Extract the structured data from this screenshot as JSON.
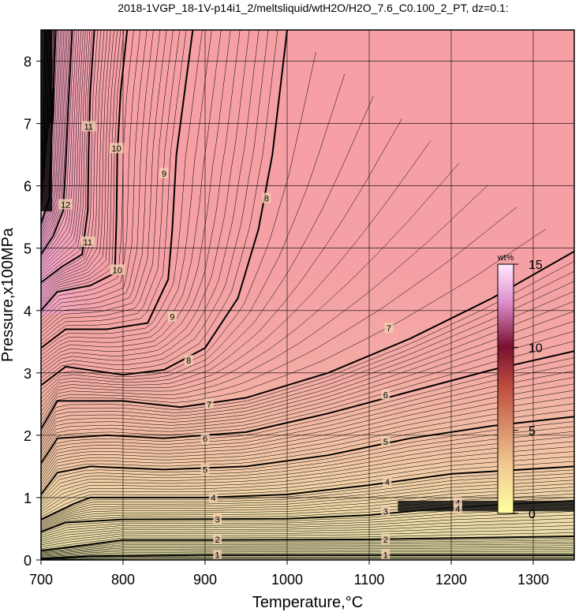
{
  "chart_data": {
    "type": "contour",
    "title": "2018-1VGP_18-1V-p14i1_2/meltsliquid/wtH2O/H2O_7.6_C0.100_2_PT, dz=0.1:",
    "xlabel": "Temperature,°C",
    "ylabel": "Pressure,x100MPa",
    "xlim": [
      700,
      1350
    ],
    "ylim": [
      0,
      8.5
    ],
    "x_ticks": [
      "700",
      "800",
      "900",
      "1000",
      "1100",
      "1200",
      "1300"
    ],
    "y_ticks": [
      "0",
      "1",
      "2",
      "3",
      "4",
      "5",
      "6",
      "7",
      "8"
    ],
    "grid": true,
    "colorbar": {
      "unit": "wt%",
      "ticks": [
        "0",
        "5",
        "10",
        "15"
      ],
      "range": [
        0,
        15
      ],
      "placement": "right-inside"
    },
    "contour_labels": [
      {
        "level": "1",
        "x": 915,
        "y": 0.08
      },
      {
        "level": "1",
        "x": 1120,
        "y": 0.08
      },
      {
        "level": "2",
        "x": 915,
        "y": 0.33
      },
      {
        "level": "2",
        "x": 1120,
        "y": 0.33
      },
      {
        "level": "3",
        "x": 915,
        "y": 0.65
      },
      {
        "level": "3",
        "x": 1120,
        "y": 0.78
      },
      {
        "level": "4",
        "x": 910,
        "y": 1.0
      },
      {
        "level": "4",
        "x": 1122,
        "y": 1.25
      },
      {
        "level": "4",
        "x": 1208,
        "y": 0.92
      },
      {
        "level": "4",
        "x": 1208,
        "y": 0.82
      },
      {
        "level": "5",
        "x": 900,
        "y": 1.45
      },
      {
        "level": "5",
        "x": 1120,
        "y": 1.9
      },
      {
        "level": "6",
        "x": 900,
        "y": 1.95
      },
      {
        "level": "6",
        "x": 1120,
        "y": 2.65
      },
      {
        "level": "7",
        "x": 905,
        "y": 2.5
      },
      {
        "level": "7",
        "x": 1124,
        "y": 3.72
      },
      {
        "level": "8",
        "x": 880,
        "y": 3.2
      },
      {
        "level": "8",
        "x": 975,
        "y": 5.8
      },
      {
        "level": "9",
        "x": 860,
        "y": 3.9
      },
      {
        "level": "9",
        "x": 850,
        "y": 6.2
      },
      {
        "level": "10",
        "x": 793,
        "y": 4.65
      },
      {
        "level": "10",
        "x": 792,
        "y": 6.6
      },
      {
        "level": "11",
        "x": 757,
        "y": 5.1
      },
      {
        "level": "11",
        "x": 758,
        "y": 6.95
      },
      {
        "level": "12",
        "x": 730,
        "y": 5.7
      }
    ],
    "heavy_contours": [
      {
        "level": 1,
        "points": [
          [
            700,
            0.02
          ],
          [
            760,
            0.06
          ],
          [
            900,
            0.08
          ],
          [
            1100,
            0.08
          ],
          [
            1350,
            0.08
          ]
        ]
      },
      {
        "level": 2,
        "points": [
          [
            700,
            0.15
          ],
          [
            760,
            0.25
          ],
          [
            800,
            0.32
          ],
          [
            900,
            0.32
          ],
          [
            1100,
            0.33
          ],
          [
            1350,
            0.38
          ]
        ]
      },
      {
        "level": 3,
        "points": [
          [
            700,
            0.45
          ],
          [
            730,
            0.6
          ],
          [
            800,
            0.65
          ],
          [
            1000,
            0.66
          ],
          [
            1100,
            0.72
          ],
          [
            1200,
            0.84
          ],
          [
            1350,
            0.95
          ]
        ]
      },
      {
        "level": 4,
        "points": [
          [
            700,
            0.65
          ],
          [
            740,
            0.9
          ],
          [
            760,
            1.0
          ],
          [
            900,
            1.0
          ],
          [
            1000,
            1.05
          ],
          [
            1100,
            1.2
          ],
          [
            1200,
            1.38
          ],
          [
            1350,
            1.5
          ]
        ]
      },
      {
        "level": 5,
        "points": [
          [
            700,
            1.05
          ],
          [
            720,
            1.4
          ],
          [
            760,
            1.5
          ],
          [
            850,
            1.45
          ],
          [
            950,
            1.5
          ],
          [
            1050,
            1.68
          ],
          [
            1150,
            1.95
          ],
          [
            1250,
            2.15
          ],
          [
            1350,
            2.3
          ]
        ]
      },
      {
        "level": 6,
        "points": [
          [
            700,
            1.55
          ],
          [
            720,
            1.95
          ],
          [
            780,
            2.0
          ],
          [
            850,
            1.95
          ],
          [
            950,
            2.05
          ],
          [
            1050,
            2.35
          ],
          [
            1150,
            2.7
          ],
          [
            1250,
            3.05
          ],
          [
            1350,
            3.35
          ]
        ]
      },
      {
        "level": 7,
        "points": [
          [
            700,
            2.1
          ],
          [
            720,
            2.55
          ],
          [
            800,
            2.55
          ],
          [
            870,
            2.45
          ],
          [
            950,
            2.6
          ],
          [
            1050,
            3.0
          ],
          [
            1150,
            3.55
          ],
          [
            1250,
            4.2
          ],
          [
            1350,
            4.95
          ]
        ]
      },
      {
        "level": 8,
        "points": [
          [
            700,
            2.8
          ],
          [
            730,
            3.1
          ],
          [
            800,
            2.97
          ],
          [
            850,
            3.05
          ],
          [
            900,
            3.4
          ],
          [
            940,
            4.2
          ],
          [
            965,
            5.3
          ],
          [
            982,
            6.5
          ],
          [
            1000,
            8.5
          ]
        ]
      },
      {
        "level": 9,
        "points": [
          [
            700,
            3.4
          ],
          [
            730,
            3.7
          ],
          [
            780,
            3.7
          ],
          [
            830,
            3.8
          ],
          [
            855,
            4.5
          ],
          [
            860,
            5.3
          ],
          [
            865,
            6.5
          ],
          [
            885,
            8.5
          ]
        ]
      },
      {
        "level": 10,
        "points": [
          [
            700,
            4.0
          ],
          [
            720,
            4.3
          ],
          [
            760,
            4.4
          ],
          [
            790,
            4.6
          ],
          [
            792,
            5.5
          ],
          [
            793,
            6.5
          ],
          [
            797,
            7.5
          ],
          [
            805,
            8.5
          ]
        ]
      },
      {
        "level": 11,
        "points": [
          [
            700,
            4.45
          ],
          [
            725,
            4.7
          ],
          [
            750,
            4.9
          ],
          [
            757,
            5.6
          ],
          [
            758,
            6.5
          ],
          [
            760,
            7.5
          ],
          [
            765,
            8.5
          ]
        ]
      },
      {
        "level": 12,
        "points": [
          [
            700,
            4.9
          ],
          [
            715,
            5.2
          ],
          [
            727,
            5.6
          ],
          [
            730,
            6.3
          ],
          [
            733,
            7.2
          ],
          [
            738,
            8.5
          ]
        ]
      },
      {
        "level": 13,
        "points": [
          [
            700,
            5.4
          ],
          [
            710,
            5.8
          ],
          [
            712,
            6.5
          ],
          [
            715,
            7.5
          ],
          [
            718,
            8.5
          ]
        ]
      }
    ]
  }
}
